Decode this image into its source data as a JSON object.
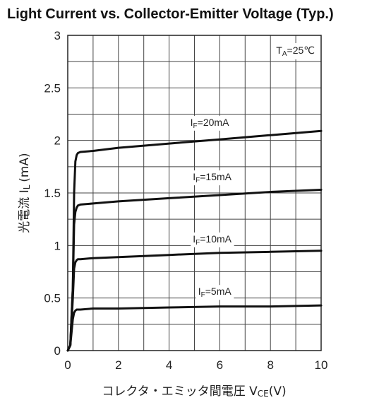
{
  "chart_data": {
    "type": "line",
    "title": "Light Current  vs.  Collector-Emitter Voltage (Typ.)",
    "xlabel": "コレクタ・エミッタ間電圧",
    "xlabel_symbol": "V",
    "xlabel_subscript": "CE",
    "xlabel_unit": "(V)",
    "ylabel": "光電流",
    "ylabel_symbol": "I",
    "ylabel_subscript": "L",
    "ylabel_unit": "(mA)",
    "annotation": {
      "main": "T",
      "sub": "A",
      "value": "=25℃"
    },
    "xlim": [
      0,
      10
    ],
    "ylim": [
      0,
      3
    ],
    "xticks": [
      0,
      2,
      4,
      6,
      8,
      10
    ],
    "xtick_labels": [
      "0",
      "2",
      "4",
      "6",
      "8",
      "10"
    ],
    "yticks": [
      0,
      0.5,
      1,
      1.5,
      2,
      2.5,
      3
    ],
    "ytick_labels": [
      "0",
      "0.5",
      "1",
      "1.5",
      "2",
      "2.5",
      "3"
    ],
    "x_grid_step": 1,
    "y_grid_step": 0.25,
    "grid": true,
    "series": [
      {
        "name_prefix": "I",
        "name_sub": "F",
        "name_value": "=20mA",
        "label_at": [
          5.6,
          2.14
        ],
        "x": [
          0,
          0.1,
          0.2,
          0.25,
          0.3,
          0.35,
          0.4,
          0.5,
          1,
          2,
          4,
          6,
          8,
          10
        ],
        "y": [
          0,
          0.05,
          0.6,
          1.5,
          1.8,
          1.86,
          1.88,
          1.89,
          1.9,
          1.93,
          1.97,
          2.01,
          2.05,
          2.09
        ]
      },
      {
        "name_prefix": "I",
        "name_sub": "F",
        "name_value": "=15mA",
        "label_at": [
          5.7,
          1.62
        ],
        "x": [
          0,
          0.1,
          0.2,
          0.25,
          0.3,
          0.35,
          0.4,
          0.5,
          1,
          2,
          4,
          6,
          8,
          10
        ],
        "y": [
          0,
          0.05,
          0.6,
          1.2,
          1.32,
          1.36,
          1.38,
          1.39,
          1.4,
          1.42,
          1.45,
          1.48,
          1.51,
          1.53
        ]
      },
      {
        "name_prefix": "I",
        "name_sub": "F",
        "name_value": "=10mA",
        "label_at": [
          5.7,
          1.03
        ],
        "x": [
          0,
          0.1,
          0.2,
          0.25,
          0.3,
          0.35,
          0.4,
          0.5,
          1,
          2,
          4,
          6,
          8,
          10
        ],
        "y": [
          0,
          0.05,
          0.5,
          0.78,
          0.84,
          0.86,
          0.87,
          0.87,
          0.88,
          0.89,
          0.91,
          0.93,
          0.94,
          0.95
        ]
      },
      {
        "name_prefix": "I",
        "name_sub": "F",
        "name_value": "=5mA",
        "label_at": [
          5.8,
          0.53
        ],
        "x": [
          0,
          0.1,
          0.2,
          0.25,
          0.3,
          0.35,
          0.4,
          0.5,
          1,
          2,
          4,
          6,
          8,
          10
        ],
        "y": [
          0,
          0.05,
          0.3,
          0.36,
          0.38,
          0.39,
          0.39,
          0.39,
          0.4,
          0.4,
          0.41,
          0.42,
          0.42,
          0.43
        ]
      }
    ]
  }
}
